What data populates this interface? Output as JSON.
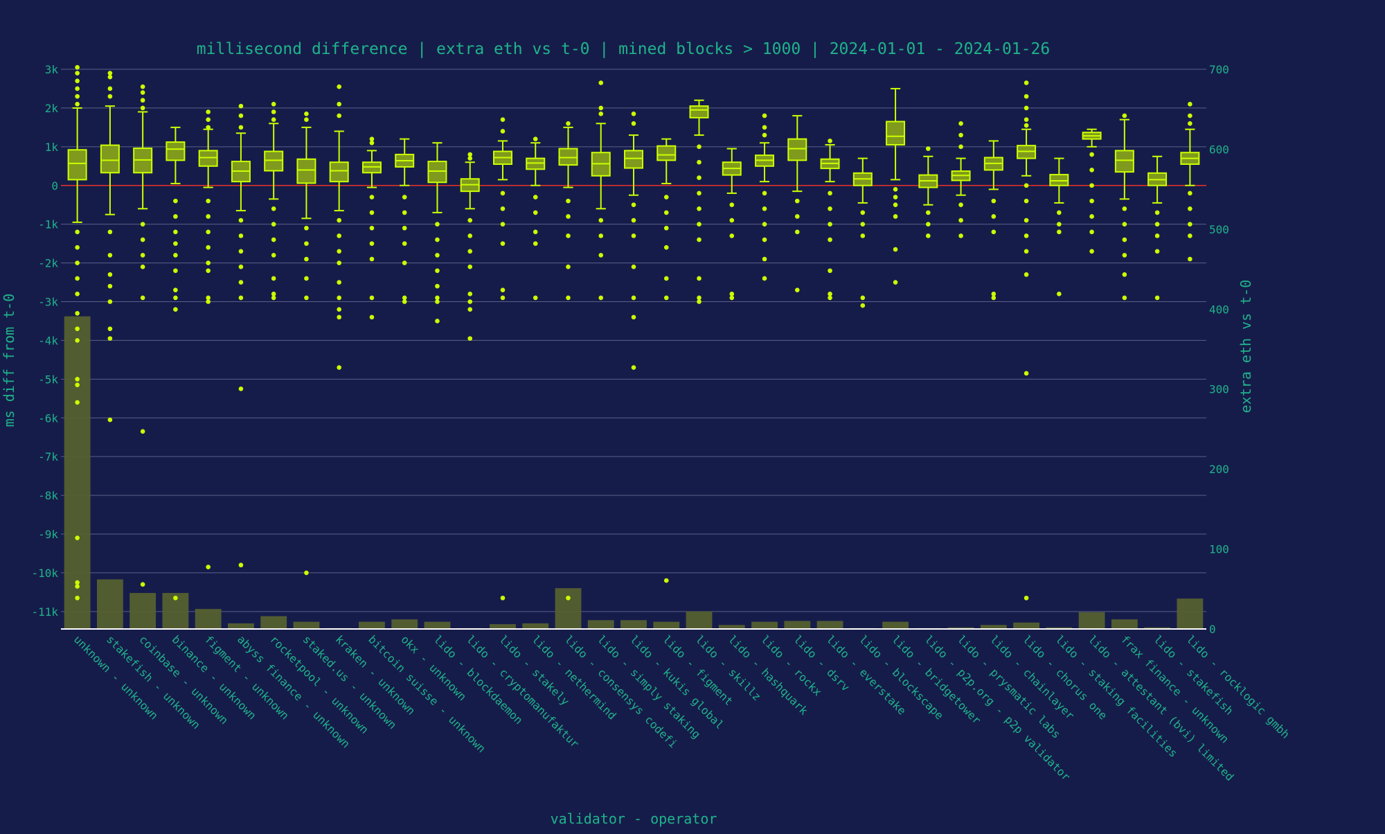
{
  "colors": {
    "background": "#161c4a",
    "text": "#1fb38a",
    "grid": "#5a6088",
    "box": "#ccff00",
    "box_fill": "#7f9a1c",
    "bar": "#55602f",
    "zero_line": "#e8302a",
    "axis_line": "#ffffff"
  },
  "chart_data": {
    "type": "box",
    "title": "millisecond difference | extra eth vs t-0 | mined blocks > 1000 | 2024-01-01 - 2024-01-26",
    "xlabel": "validator - operator",
    "ylabel": "ms diff from t-0",
    "y2label": "extra eth vs t-0",
    "ylim": [
      -11450,
      3000
    ],
    "y2lim": [
      0,
      700
    ],
    "yticks": [
      3000,
      2000,
      1000,
      0,
      -1000,
      -2000,
      -3000,
      -4000,
      -5000,
      -6000,
      -7000,
      -8000,
      -9000,
      -10000,
      -11000
    ],
    "ytick_labels": [
      "3k",
      "2k",
      "1k",
      "0",
      "-1k",
      "-2k",
      "-3k",
      "-4k",
      "-5k",
      "-6k",
      "-7k",
      "-8k",
      "-9k",
      "-10k",
      "-11k"
    ],
    "y2ticks": [
      0,
      100,
      200,
      300,
      400,
      500,
      600,
      700
    ],
    "y2tick_labels": [
      "0",
      "100",
      "200",
      "300",
      "400",
      "500",
      "600",
      "700"
    ],
    "zero_line": 0,
    "grid": true,
    "legend": "none",
    "categories": [
      "unknown - unknown",
      "stakefish - unknown",
      "coinbase - unknown",
      "binance - unknown",
      "figment - unknown",
      "abyss finance - unknown",
      "rocketpool - unknown",
      "staked.us - unknown",
      "kraken - unknown",
      "bitcoin suisse - unknown",
      "okx - unknown",
      "lido - blockdaemon",
      "lido - cryptomanufaktur",
      "lido - stakely",
      "lido - nethermind",
      "lido - consensys codefi",
      "lido - simply staking",
      "lido - kukis global",
      "lido - figment",
      "lido - skillz",
      "lido - hashquark",
      "lido - rockx",
      "lido - dsrv",
      "lido - everstake",
      "lido - blockscape",
      "lido - bridgetower",
      "lido - p2p.org - p2p validator",
      "lido - prysmatic labs",
      "lido - chainlayer",
      "lido - chorus one",
      "lido - staking facilities",
      "lido - attestant (bvi) limited",
      "frax finance - unknown",
      "lido - stakefish",
      "lido - rocklogic gmbh"
    ],
    "bars": {
      "name": "extra eth vs t-0",
      "values": [
        391,
        62,
        45,
        45,
        25,
        7,
        16,
        9,
        1,
        9,
        12,
        9,
        1,
        6,
        7,
        51,
        11,
        11,
        9,
        22,
        5,
        9,
        10,
        10,
        1,
        9,
        1,
        2,
        5,
        8,
        2,
        21,
        12,
        2,
        38
      ]
    },
    "boxes": {
      "name": "ms diff from t-0",
      "series": [
        {
          "q1": 150,
          "median": 570,
          "q3": 920,
          "lower": -950,
          "upper": 2000,
          "outliers": [
            3050,
            2900,
            2700,
            2500,
            2300,
            2100,
            -1200,
            -1600,
            -2000,
            -2400,
            -2800,
            -3300,
            -3700,
            -4000,
            -5000,
            -5150,
            -5600,
            -9100,
            -10250,
            -10350,
            -10650
          ]
        },
        {
          "q1": 330,
          "median": 650,
          "q3": 1040,
          "lower": -750,
          "upper": 2050,
          "outliers": [
            2900,
            2800,
            2500,
            2300,
            -1200,
            -1800,
            -2300,
            -2600,
            -3000,
            -3700,
            -3950,
            -6050
          ]
        },
        {
          "q1": 330,
          "median": 660,
          "q3": 960,
          "lower": -600,
          "upper": 1900,
          "outliers": [
            2550,
            2400,
            2200,
            2000,
            -1000,
            -1400,
            -1800,
            -2100,
            -2900,
            -6350,
            -10300
          ]
        },
        {
          "q1": 650,
          "median": 940,
          "q3": 1120,
          "lower": 50,
          "upper": 1500,
          "outliers": [
            -400,
            -800,
            -1200,
            -1500,
            -1800,
            -2200,
            -2700,
            -2900,
            -3200,
            -10650
          ]
        },
        {
          "q1": 500,
          "median": 720,
          "q3": 900,
          "lower": -50,
          "upper": 1450,
          "outliers": [
            1900,
            1700,
            1500,
            -400,
            -800,
            -1200,
            -1600,
            -2000,
            -2200,
            -2900,
            -3000,
            -9850
          ]
        },
        {
          "q1": 100,
          "median": 370,
          "q3": 620,
          "lower": -650,
          "upper": 1350,
          "outliers": [
            2050,
            1800,
            1500,
            -900,
            -1300,
            -1700,
            -2100,
            -2500,
            -2900,
            -5250,
            -9800
          ]
        },
        {
          "q1": 380,
          "median": 650,
          "q3": 880,
          "lower": -350,
          "upper": 1600,
          "outliers": [
            2100,
            1900,
            1700,
            -600,
            -1000,
            -1400,
            -1800,
            -2400,
            -2800,
            -2900
          ]
        },
        {
          "q1": 60,
          "median": 400,
          "q3": 680,
          "lower": -850,
          "upper": 1500,
          "outliers": [
            1850,
            1700,
            -1100,
            -1500,
            -1900,
            -2400,
            -2900,
            -10000
          ]
        },
        {
          "q1": 100,
          "median": 380,
          "q3": 600,
          "lower": -650,
          "upper": 1400,
          "outliers": [
            2550,
            2100,
            1800,
            -900,
            -1300,
            -1700,
            -2000,
            -2500,
            -2900,
            -3200,
            -3400,
            -4700
          ]
        },
        {
          "q1": 330,
          "median": 480,
          "q3": 600,
          "lower": -50,
          "upper": 900,
          "outliers": [
            1200,
            1100,
            -300,
            -700,
            -1100,
            -1500,
            -1900,
            -2900,
            -3400
          ]
        },
        {
          "q1": 480,
          "median": 640,
          "q3": 800,
          "lower": 0,
          "upper": 1200,
          "outliers": [
            -300,
            -700,
            -1100,
            -1500,
            -2000,
            -2900,
            -3000
          ]
        },
        {
          "q1": 80,
          "median": 370,
          "q3": 620,
          "lower": -700,
          "upper": 1100,
          "outliers": [
            -1000,
            -1400,
            -1800,
            -2200,
            -2600,
            -2900,
            -3000,
            -3500
          ]
        },
        {
          "q1": -150,
          "median": 20,
          "q3": 170,
          "lower": -600,
          "upper": 600,
          "outliers": [
            800,
            700,
            -900,
            -1300,
            -1700,
            -2100,
            -2800,
            -3000,
            -3200,
            -3950
          ]
        },
        {
          "q1": 550,
          "median": 720,
          "q3": 880,
          "lower": 150,
          "upper": 1150,
          "outliers": [
            1700,
            1400,
            -200,
            -600,
            -1000,
            -1500,
            -2700,
            -2900,
            -10650
          ]
        },
        {
          "q1": 420,
          "median": 580,
          "q3": 700,
          "lower": 0,
          "upper": 1100,
          "outliers": [
            1200,
            -300,
            -700,
            -1200,
            -1500,
            -2900
          ]
        },
        {
          "q1": 530,
          "median": 720,
          "q3": 950,
          "lower": -50,
          "upper": 1500,
          "outliers": [
            1600,
            -400,
            -800,
            -1300,
            -2100,
            -2900,
            -10650
          ]
        },
        {
          "q1": 250,
          "median": 560,
          "q3": 850,
          "lower": -600,
          "upper": 1600,
          "outliers": [
            2650,
            2000,
            1850,
            -900,
            -1300,
            -1800,
            -2900
          ]
        },
        {
          "q1": 450,
          "median": 700,
          "q3": 900,
          "lower": -250,
          "upper": 1300,
          "outliers": [
            1850,
            1600,
            -500,
            -900,
            -1300,
            -2100,
            -2900,
            -3400,
            -4700
          ]
        },
        {
          "q1": 650,
          "median": 790,
          "q3": 1020,
          "lower": 50,
          "upper": 1200,
          "outliers": [
            -300,
            -700,
            -1100,
            -1600,
            -2400,
            -2900,
            -10200
          ]
        },
        {
          "q1": 1750,
          "median": 1950,
          "q3": 2050,
          "lower": 1300,
          "upper": 2200,
          "outliers": [
            1000,
            600,
            200,
            -200,
            -600,
            -1000,
            -1400,
            -2400,
            -2900,
            -3000
          ]
        },
        {
          "q1": 270,
          "median": 440,
          "q3": 600,
          "lower": -200,
          "upper": 950,
          "outliers": [
            -500,
            -900,
            -1300,
            -2800,
            -2900
          ]
        },
        {
          "q1": 500,
          "median": 650,
          "q3": 780,
          "lower": 100,
          "upper": 1100,
          "outliers": [
            1800,
            1500,
            1300,
            -200,
            -600,
            -1000,
            -1400,
            -1900,
            -2400
          ]
        },
        {
          "q1": 650,
          "median": 950,
          "q3": 1200,
          "lower": -150,
          "upper": 1800,
          "outliers": [
            -400,
            -800,
            -1200,
            -2700
          ]
        },
        {
          "q1": 440,
          "median": 570,
          "q3": 680,
          "lower": 100,
          "upper": 1050,
          "outliers": [
            1150,
            -200,
            -600,
            -1000,
            -1400,
            -2200,
            -2800,
            -2900
          ]
        },
        {
          "q1": 0,
          "median": 170,
          "q3": 320,
          "lower": -450,
          "upper": 700,
          "outliers": [
            -700,
            -1000,
            -1300,
            -2900,
            -3100
          ]
        },
        {
          "q1": 1050,
          "median": 1270,
          "q3": 1650,
          "lower": 150,
          "upper": 2500,
          "outliers": [
            -100,
            -300,
            -500,
            -800,
            -1650,
            -2500
          ]
        },
        {
          "q1": -50,
          "median": 120,
          "q3": 270,
          "lower": -500,
          "upper": 750,
          "outliers": [
            950,
            -700,
            -1000,
            -1300
          ]
        },
        {
          "q1": 130,
          "median": 260,
          "q3": 370,
          "lower": -250,
          "upper": 700,
          "outliers": [
            1600,
            1300,
            1000,
            -500,
            -900,
            -1300
          ]
        },
        {
          "q1": 400,
          "median": 570,
          "q3": 720,
          "lower": -100,
          "upper": 1150,
          "outliers": [
            -400,
            -800,
            -1200,
            -2800,
            -2900
          ]
        },
        {
          "q1": 700,
          "median": 880,
          "q3": 1030,
          "lower": 250,
          "upper": 1450,
          "outliers": [
            2650,
            2300,
            2000,
            1700,
            1550,
            0,
            -400,
            -900,
            -1300,
            -1700,
            -2300,
            -4850,
            -10650
          ]
        },
        {
          "q1": 0,
          "median": 120,
          "q3": 280,
          "lower": -450,
          "upper": 700,
          "outliers": [
            -700,
            -1000,
            -1200,
            -2800
          ]
        },
        {
          "q1": 1200,
          "median": 1280,
          "q3": 1370,
          "lower": 1000,
          "upper": 1450,
          "outliers": [
            800,
            400,
            0,
            -400,
            -800,
            -1200,
            -1700
          ]
        },
        {
          "q1": 350,
          "median": 650,
          "q3": 900,
          "lower": -350,
          "upper": 1700,
          "outliers": [
            1800,
            -600,
            -1000,
            -1400,
            -1800,
            -2300,
            -2900
          ]
        },
        {
          "q1": 0,
          "median": 150,
          "q3": 320,
          "lower": -450,
          "upper": 750,
          "outliers": [
            -700,
            -1000,
            -1300,
            -1700,
            -2900
          ]
        },
        {
          "q1": 550,
          "median": 700,
          "q3": 850,
          "lower": 0,
          "upper": 1450,
          "outliers": [
            2100,
            1800,
            1600,
            -200,
            -600,
            -1000,
            -1300,
            -1900
          ]
        }
      ]
    }
  }
}
